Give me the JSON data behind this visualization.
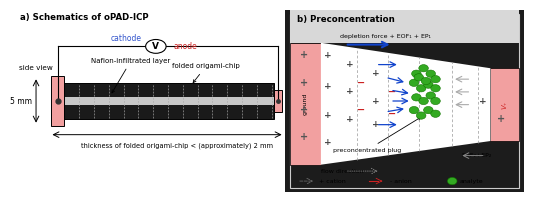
{
  "title_a": "a) Schematics of oPAD-ICP",
  "title_b": "b) Preconcentration",
  "bg_color": "#ffffff",
  "panel_a": {
    "chip_color": "#1a1a1a",
    "pink_color": "#f2a0a0",
    "cathode_color": "#3355cc",
    "anode_color": "#cc2222",
    "side_view": "side view",
    "label_nafion": "Nafion-infiltrated layer",
    "label_chip": "folded origami-chip",
    "label_5mm": "5 mm",
    "label_thickness": "thickness of folded origami-chip < (approximately) 2 mm",
    "cathode_text": "cathode",
    "anode_text": "anode"
  },
  "panel_b": {
    "dark_bg": "#1c1c1c",
    "pink_color": "#f2a0a0",
    "blue_arrow_color": "#1144cc",
    "green_analyte": "#33aa22",
    "red_anion": "#cc2222",
    "depletion_label": "depletion force + EOF₁ + EP₁",
    "preconc_label": "preconcentrated plug",
    "eof_label": "EOF₂+EP₂",
    "flow_label": "flow direction",
    "ground_label": "ground",
    "v_label": "V₊",
    "cation_label": "+ cation",
    "anion_label": "- anion",
    "analyte_label": "analyte"
  }
}
